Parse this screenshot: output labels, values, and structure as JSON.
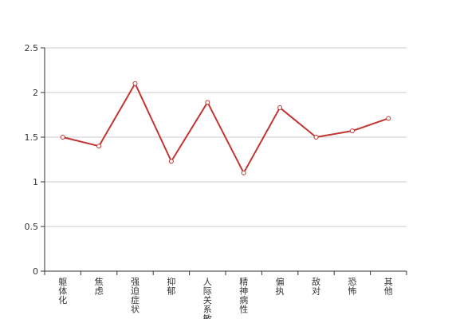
{
  "chart_data": {
    "type": "line",
    "categories": [
      "躯体化",
      "焦虑",
      "强迫症状",
      "抑郁",
      "人际关系敏感",
      "精神病性",
      "偏执",
      "敌对",
      "恐怖",
      "其他"
    ],
    "series": [
      {
        "values": [
          1.5,
          1.4,
          2.1,
          1.23,
          1.89,
          1.1,
          1.83,
          1.5,
          1.57,
          1.71
        ]
      }
    ],
    "yticks": [
      "0",
      "0.5",
      "1",
      "1.5",
      "2",
      "2.5"
    ],
    "ylim": [
      0,
      2.5
    ],
    "grid": true,
    "colors": {
      "line": "#c23531",
      "grid": "#cccccc",
      "axis": "#333333",
      "marker_fill": "#ffffff"
    }
  }
}
